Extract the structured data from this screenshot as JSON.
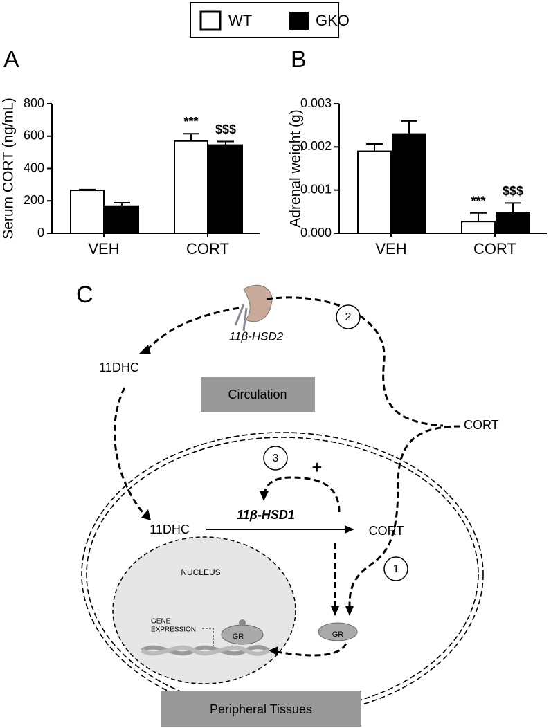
{
  "legend": [
    "WT",
    "GKO"
  ],
  "chart_data": [
    {
      "type": "bar",
      "panel": "A",
      "y_label": "Serum CORT (ng/mL)",
      "categories": [
        "VEH",
        "CORT"
      ],
      "series": [
        {
          "name": "WT",
          "color": "#ffffff",
          "values": [
            265,
            570
          ],
          "errors": [
            5,
            45
          ]
        },
        {
          "name": "GKO",
          "color": "#000000",
          "values": [
            168,
            545
          ],
          "errors": [
            20,
            22
          ]
        }
      ],
      "annotations": [
        "***",
        "$$$"
      ],
      "ylim": [
        0,
        800
      ],
      "yticks": [
        0,
        200,
        400,
        600,
        800
      ]
    },
    {
      "type": "bar",
      "panel": "B",
      "y_label": "Adrenal weight (g)",
      "categories": [
        "VEH",
        "CORT"
      ],
      "series": [
        {
          "color": "#ffffff",
          "values": [
            0.0019,
            0.00027
          ],
          "errors": [
            0.00017,
            0.0002
          ]
        },
        {
          "color": "#000000",
          "values": [
            0.0023,
            0.00048
          ],
          "errors": [
            0.0003,
            0.00022
          ]
        }
      ],
      "annotations": [
        "***",
        "$$$"
      ],
      "ylim": [
        0,
        0.003
      ],
      "yticks": [
        {
          "value": 0,
          "label": "0.000"
        },
        0.001,
        0.002,
        0.003
      ]
    }
  ],
  "diagram": {
    "panel": "C",
    "kidney_enzyme": "11β-HSD2",
    "circ_11dhc": "11DHC",
    "circulation": "Circulation",
    "circ_cort": "CORT",
    "step2": "2",
    "step3": "3",
    "plus": "+",
    "tissue_11dhc": "11DHC",
    "tissue_enzyme": "11β-HSD1",
    "tissue_cort": "CORT",
    "step1": "1",
    "nucleus": "NUCLEUS",
    "gene_expression_1": "GENE",
    "gene_expression_2": "EXPRESSION",
    "gr_nuclear": "GR",
    "gr_cytoplasm": "GR",
    "peripheral": "Peripheral Tissues"
  }
}
